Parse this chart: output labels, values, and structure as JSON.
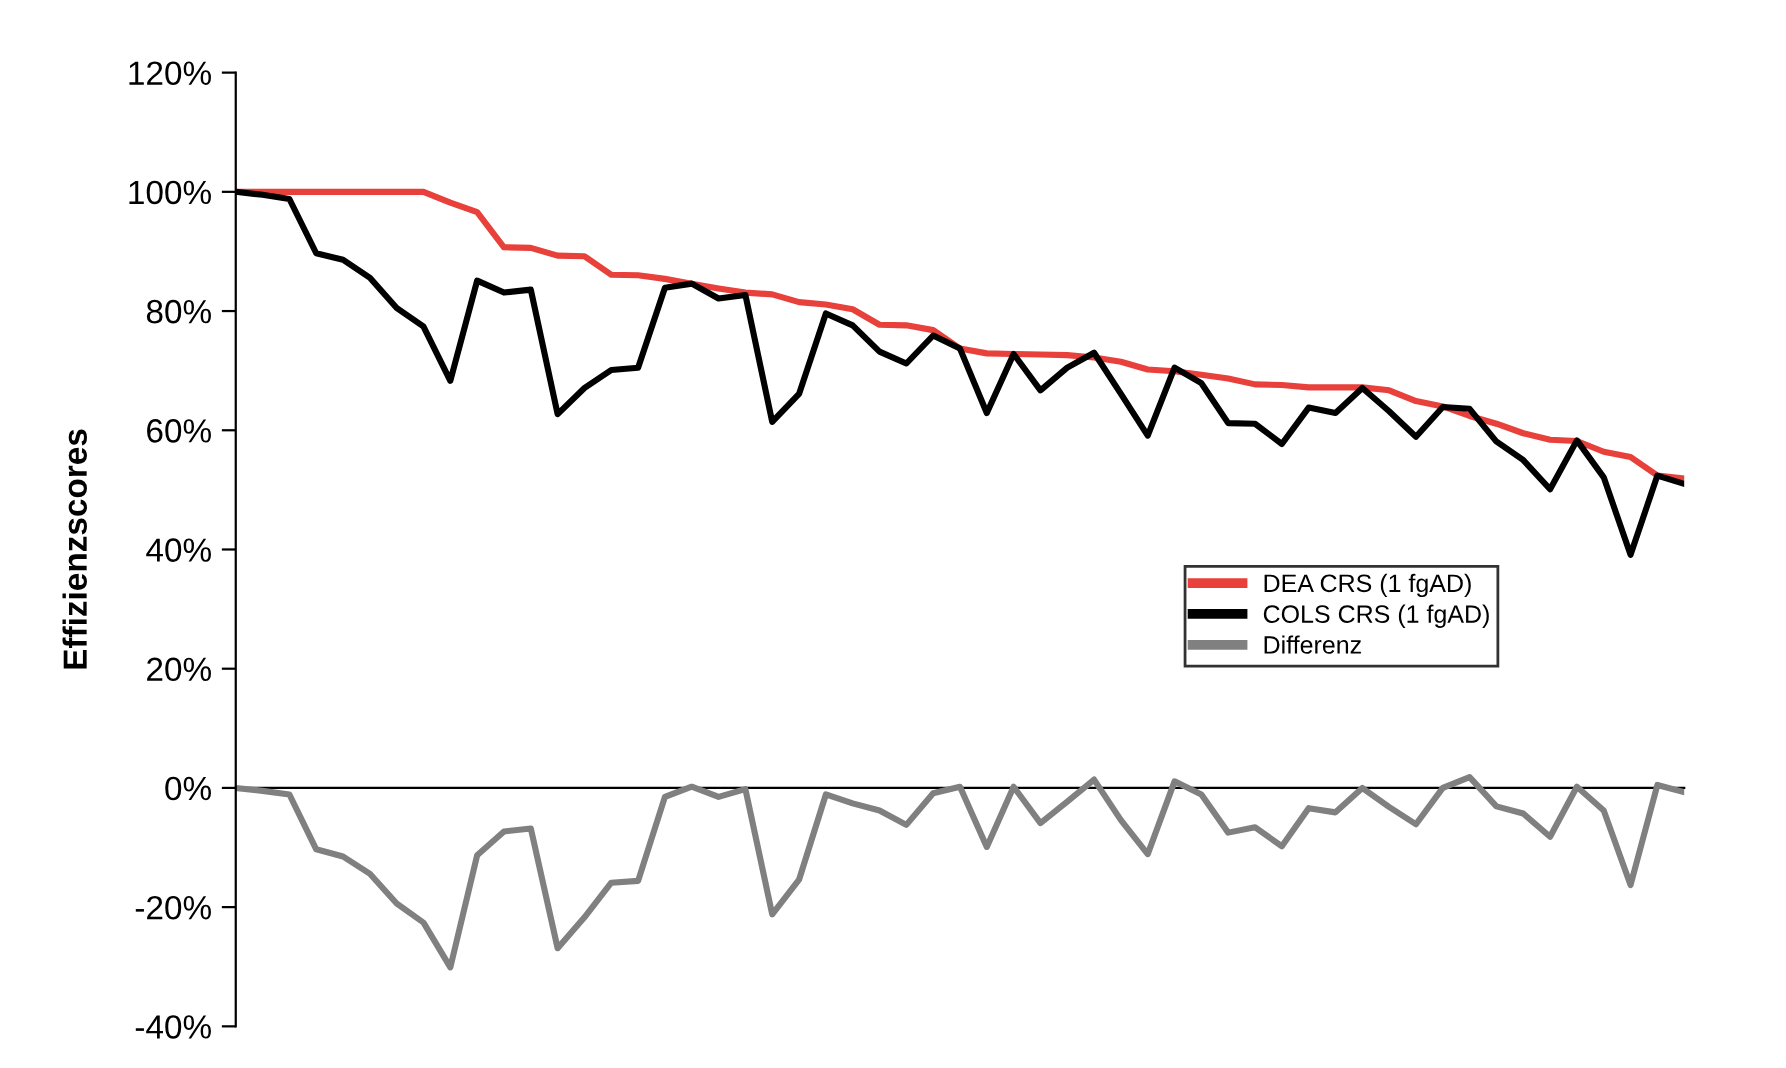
{
  "chart_data": {
    "type": "line",
    "ylabel": "Effizienzscores",
    "categories": [
      null,
      null,
      null,
      null,
      null,
      null,
      null,
      null,
      null,
      null,
      null,
      null,
      null,
      null,
      null,
      null,
      null,
      null,
      null,
      null,
      null,
      null,
      null,
      null,
      null,
      null,
      null,
      null,
      null,
      null,
      null,
      null,
      null,
      null,
      null,
      null,
      null,
      null,
      null,
      null,
      null,
      null,
      null,
      null,
      null,
      null,
      null,
      null,
      null,
      null,
      null,
      null,
      null,
      null,
      null
    ],
    "series": [
      {
        "name": "DEA CRS (1 fgAD)",
        "color": "#e8403a",
        "values": [
          100,
          100,
          100,
          100,
          100,
          100,
          100,
          100,
          98.2,
          96.6,
          90.7,
          90.6,
          89.3,
          89.2,
          86.1,
          86,
          85.4,
          84.6,
          83.8,
          83.1,
          82.8,
          81.5,
          81.1,
          80.3,
          77.7,
          77.6,
          76.8,
          73.7,
          72.9,
          72.8,
          72.7,
          72.6,
          72.2,
          71.5,
          70.2,
          69.9,
          69.3,
          68.7,
          67.7,
          67.6,
          67.2,
          67.2,
          67.2,
          66.7,
          64.9,
          64,
          62.4,
          61.1,
          59.5,
          58.4,
          58.2,
          56.4,
          55.5,
          52.4,
          51.9
        ]
      },
      {
        "name": "COLS CRS (1 fgAD)",
        "color": "#000000",
        "values": [
          100,
          99.5,
          98.8,
          89.7,
          88.6,
          85.6,
          80.5,
          77.4,
          68.3,
          85.1,
          83.1,
          83.6,
          62.7,
          67.1,
          70.1,
          70.5,
          83.9,
          84.6,
          82.1,
          82.7,
          61.4,
          66.1,
          79.6,
          77.6,
          73.2,
          71.2,
          75.9,
          73.7,
          62.9,
          72.8,
          66.7,
          70.5,
          73,
          66.1,
          59.1,
          70.5,
          67.9,
          61.2,
          61.1,
          57.7,
          63.8,
          62.9,
          67.1,
          63.2,
          58.9,
          63.9,
          63.6,
          58.1,
          55,
          50.1,
          58.3,
          52.1,
          39.1,
          52.4,
          51
        ]
      },
      {
        "name": "Differenz",
        "color": "#808080",
        "values": [
          0,
          -0.5,
          -1.1,
          -10.3,
          -11.5,
          -14.4,
          -19.4,
          -22.6,
          -30.1,
          -11.3,
          -7.3,
          -6.8,
          -26.9,
          -21.7,
          -15.9,
          -15.6,
          -1.5,
          0.2,
          -1.5,
          -0.2,
          -21.2,
          -15.4,
          -1.1,
          -2.6,
          -3.8,
          -6.2,
          -0.9,
          0.2,
          -9.9,
          0.2,
          -5.9,
          -2.3,
          1.4,
          -5.4,
          -11.1,
          1.1,
          -1.1,
          -7.5,
          -6.6,
          -9.8,
          -3.4,
          -4.1,
          0,
          -3.2,
          -6.1,
          0,
          1.8,
          -3.1,
          -4.3,
          -8.2,
          0.2,
          -3.8,
          -16.3,
          0.5,
          -0.7
        ]
      }
    ],
    "ylim": [
      -40,
      120
    ],
    "yticks": [
      {
        "value": -40,
        "label": "-40%"
      },
      {
        "value": -20,
        "label": "-20%"
      },
      {
        "value": 0,
        "label": "0%"
      },
      {
        "value": 20,
        "label": "20%"
      },
      {
        "value": 40,
        "label": "40%"
      },
      {
        "value": 60,
        "label": "60%"
      },
      {
        "value": 80,
        "label": "80%"
      },
      {
        "value": 100,
        "label": "100%"
      },
      {
        "value": 120,
        "label": "120%"
      }
    ],
    "tick_labels": "y",
    "legend": "right",
    "marker": "none",
    "line_style": "solid"
  }
}
